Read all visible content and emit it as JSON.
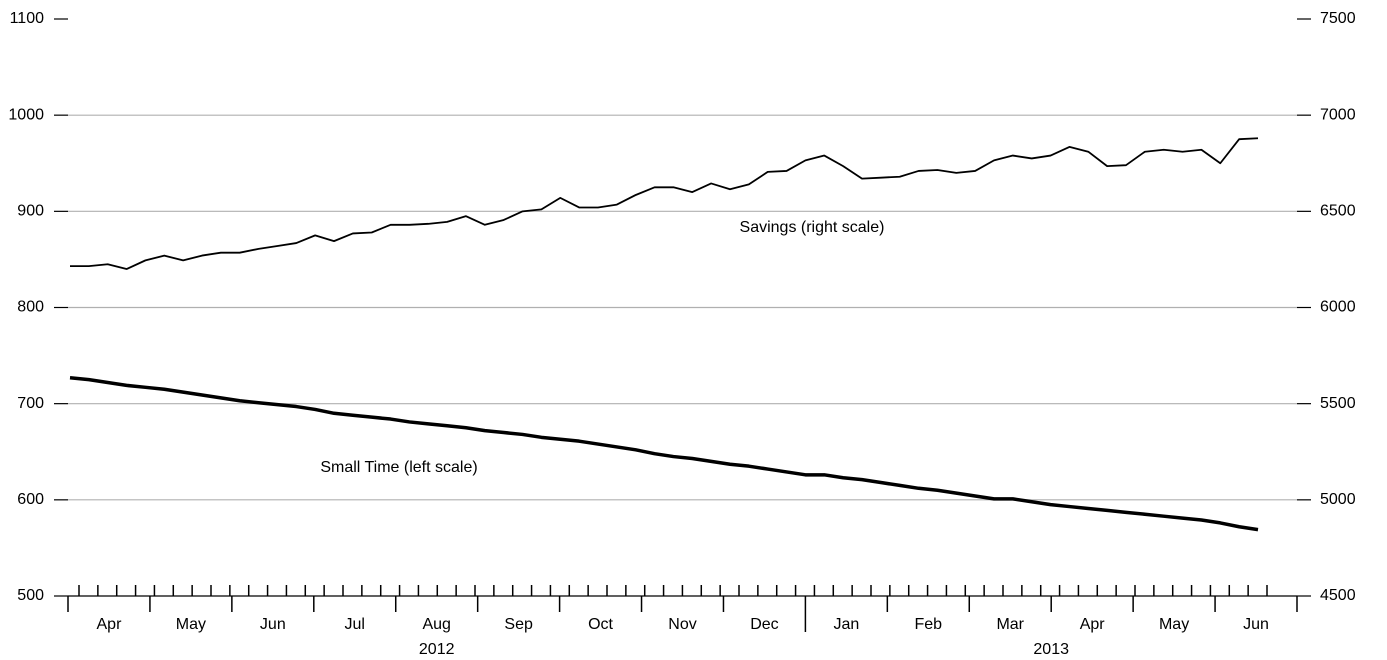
{
  "chart_data": {
    "type": "line",
    "categories": [
      null,
      null,
      null,
      null,
      null,
      null,
      null,
      null,
      null,
      null,
      null,
      null,
      null,
      null,
      null,
      null,
      null,
      null,
      null,
      null,
      null,
      null,
      null,
      null,
      null,
      null,
      null,
      null,
      null,
      null,
      null,
      null,
      null,
      null,
      null,
      null,
      null,
      null,
      null,
      null,
      null,
      null,
      null,
      null,
      null,
      null,
      null,
      null,
      null,
      null,
      null,
      null,
      null,
      null,
      null,
      null,
      null,
      null,
      null,
      null,
      null,
      null,
      null,
      null
    ],
    "x_groups": [
      {
        "label": "2012",
        "months": [
          "Apr",
          "May",
          "Jun",
          "Jul",
          "Aug",
          "Sep",
          "Oct",
          "Nov",
          "Dec"
        ]
      },
      {
        "label": "2013",
        "months": [
          "Jan",
          "Feb",
          "Mar",
          "Apr",
          "May",
          "Jun"
        ]
      }
    ],
    "series": [
      {
        "name": "Savings (right scale)",
        "color": "#000000",
        "axis": "y2",
        "values": [
          6215,
          6215,
          6225,
          6200,
          6245,
          6270,
          6245,
          6270,
          6285,
          6285,
          6305,
          6320,
          6335,
          6375,
          6345,
          6385,
          6390,
          6430,
          6430,
          6435,
          6445,
          6475,
          6430,
          6455,
          6500,
          6510,
          6570,
          6520,
          6520,
          6535,
          6585,
          6625,
          6625,
          6600,
          6645,
          6615,
          6640,
          6705,
          6710,
          6765,
          6790,
          6735,
          6670,
          6675,
          6680,
          6710,
          6715,
          6700,
          6710,
          6765,
          6790,
          6775,
          6790,
          6835,
          6810,
          6735,
          6740,
          6810,
          6820,
          6810,
          6820,
          6750,
          6875,
          6880
        ]
      },
      {
        "name": "Small Time (left scale)",
        "color": "#000000",
        "values": [
          727,
          725,
          722,
          719,
          717,
          715,
          712,
          709,
          706,
          703,
          701,
          699,
          697,
          694,
          690,
          688,
          686,
          684,
          681,
          679,
          677,
          675,
          672,
          670,
          668,
          665,
          663,
          661,
          658,
          655,
          652,
          648,
          645,
          643,
          640,
          637,
          635,
          632,
          629,
          626,
          626,
          623,
          621,
          618,
          615,
          612,
          610,
          607,
          604,
          601,
          601,
          598,
          595,
          593,
          591,
          589,
          587,
          585,
          583,
          581,
          579,
          576,
          572,
          569
        ]
      }
    ],
    "ylim": [
      500,
      1100
    ],
    "yticks": [
      500,
      600,
      700,
      800,
      900,
      1000,
      1100
    ],
    "y2lim": [
      4500,
      7500
    ],
    "y2ticks": [
      4500,
      5000,
      5500,
      6000,
      6500,
      7000,
      7500
    ],
    "grid": true
  }
}
